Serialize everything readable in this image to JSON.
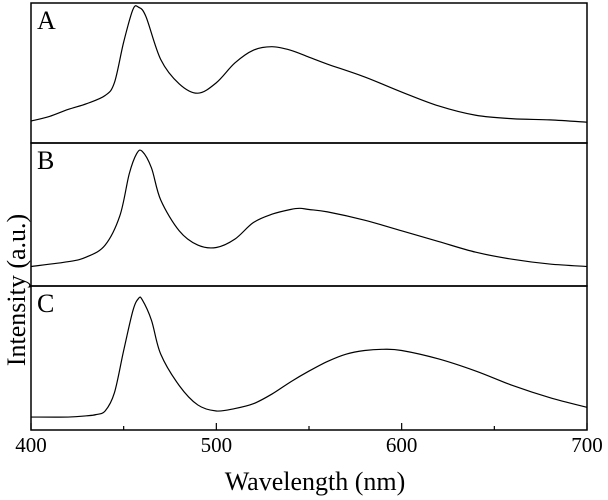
{
  "chart_data": {
    "type": "line",
    "xlabel": "Wavelength (nm)",
    "ylabel": "Intensity (a.u.)",
    "xlim": [
      400,
      700
    ],
    "x_ticks": [
      400,
      500,
      600,
      700
    ],
    "grid": false,
    "panels": [
      {
        "label": "A",
        "ylim": [
          0,
          1
        ],
        "x": [
          400,
          410,
          420,
          430,
          440,
          445,
          450,
          455,
          458,
          462,
          470,
          480,
          490,
          500,
          510,
          520,
          530,
          540,
          550,
          560,
          580,
          600,
          620,
          640,
          660,
          680,
          700
        ],
        "y": [
          0.02,
          0.06,
          0.12,
          0.17,
          0.24,
          0.35,
          0.7,
          0.98,
          1.0,
          0.92,
          0.55,
          0.34,
          0.26,
          0.35,
          0.52,
          0.63,
          0.66,
          0.63,
          0.57,
          0.51,
          0.4,
          0.27,
          0.15,
          0.07,
          0.04,
          0.03,
          0.01
        ]
      },
      {
        "label": "B",
        "ylim": [
          0,
          1
        ],
        "x": [
          400,
          420,
          430,
          440,
          448,
          453,
          457,
          460,
          465,
          470,
          480,
          490,
          500,
          510,
          520,
          530,
          540,
          545,
          550,
          560,
          580,
          600,
          620,
          640,
          660,
          680,
          700
        ],
        "y": [
          0.02,
          0.06,
          0.1,
          0.2,
          0.45,
          0.8,
          0.97,
          0.99,
          0.85,
          0.58,
          0.32,
          0.2,
          0.18,
          0.25,
          0.39,
          0.46,
          0.5,
          0.51,
          0.5,
          0.48,
          0.41,
          0.32,
          0.23,
          0.14,
          0.08,
          0.04,
          0.02
        ]
      },
      {
        "label": "C",
        "ylim": [
          0,
          1
        ],
        "x": [
          400,
          420,
          430,
          435,
          440,
          445,
          450,
          455,
          458,
          460,
          465,
          470,
          480,
          490,
          500,
          510,
          520,
          530,
          540,
          550,
          560,
          570,
          580,
          590,
          600,
          620,
          640,
          660,
          680,
          700
        ],
        "y": [
          0.0,
          0.0,
          0.01,
          0.02,
          0.05,
          0.2,
          0.55,
          0.88,
          0.98,
          0.97,
          0.8,
          0.52,
          0.26,
          0.1,
          0.05,
          0.07,
          0.11,
          0.19,
          0.29,
          0.38,
          0.46,
          0.52,
          0.55,
          0.56,
          0.55,
          0.48,
          0.38,
          0.26,
          0.16,
          0.08
        ]
      }
    ]
  }
}
